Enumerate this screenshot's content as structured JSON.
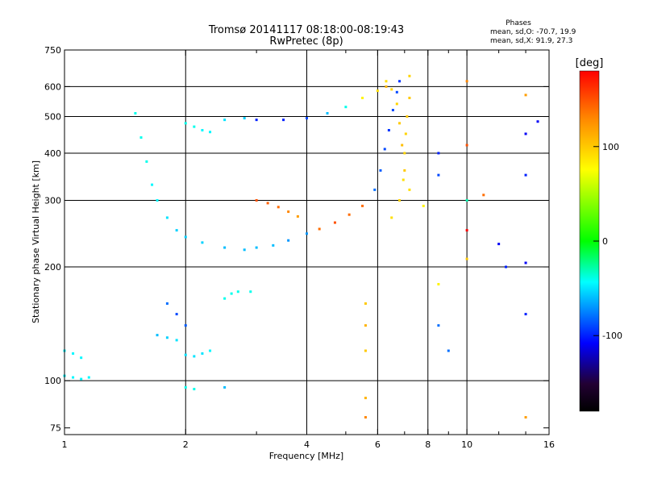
{
  "chart_data": {
    "type": "scatter",
    "title": "Tromsø 20141117 08:18:00-08:19:43",
    "subtitle": "RwPretec (8p)",
    "phase_stats": {
      "heading": "Phases",
      "line_o": "mean, sd,O: -70.7, 19.9",
      "line_x": "mean, sd,X:  91.9, 27.3"
    },
    "xlabel": "Frequency [MHz]",
    "ylabel": "Stationary phase Virtual Height [km]",
    "x_scale": "log",
    "y_scale": "log",
    "xlim": [
      1,
      16
    ],
    "ylim": [
      72,
      750
    ],
    "x_ticks": [
      1,
      2,
      4,
      6,
      8,
      10,
      16
    ],
    "x_tick_labels": [
      "1",
      "2",
      "4",
      "6",
      "8",
      "10",
      "16"
    ],
    "x_minor_ticks": [
      3,
      5,
      7,
      9,
      12,
      14
    ],
    "y_ticks": [
      75,
      100,
      200,
      300,
      400,
      500,
      600,
      750
    ],
    "y_tick_labels": [
      "75",
      "100",
      "200",
      "300",
      "400",
      "500",
      "600",
      "750"
    ],
    "x_gridlines": [
      2,
      4,
      6,
      8,
      10
    ],
    "y_gridlines": [
      100,
      200,
      300,
      400,
      500,
      600
    ],
    "colorbar": {
      "label": "[deg]",
      "range": [
        -180,
        180
      ],
      "ticks": [
        100,
        0,
        -100
      ],
      "tick_labels": [
        "100",
        "0",
        "-100"
      ],
      "colors": [
        "#ff0000",
        "#ff8800",
        "#ffff00",
        "#00ff00",
        "#00ffff",
        "#0000ff",
        "#220033",
        "#000000"
      ]
    },
    "series": [
      {
        "points": [
          [
            1.0,
            120,
            -45
          ],
          [
            1.05,
            118,
            -45
          ],
          [
            1.1,
            115,
            -45
          ],
          [
            1.0,
            103,
            -45
          ],
          [
            1.05,
            102,
            -45
          ],
          [
            1.1,
            101,
            -45
          ],
          [
            1.15,
            102,
            -45
          ]
        ]
      },
      {
        "points": [
          [
            1.5,
            510,
            -40
          ],
          [
            1.55,
            440,
            -40
          ],
          [
            1.6,
            380,
            -40
          ],
          [
            1.65,
            330,
            -45
          ],
          [
            1.7,
            300,
            -45
          ],
          [
            1.8,
            270,
            -50
          ],
          [
            1.9,
            250,
            -55
          ],
          [
            2.0,
            240,
            -55
          ],
          [
            2.2,
            232,
            -55
          ],
          [
            2.5,
            225,
            -60
          ],
          [
            2.8,
            222,
            -60
          ],
          [
            3.0,
            225,
            -60
          ],
          [
            3.3,
            228,
            -60
          ],
          [
            3.6,
            235,
            -70
          ],
          [
            4.0,
            245,
            -70
          ],
          [
            4.3,
            252,
            140
          ],
          [
            4.7,
            262,
            150
          ],
          [
            5.1,
            275,
            140
          ],
          [
            5.5,
            290,
            140
          ],
          [
            5.9,
            320,
            -80
          ],
          [
            6.1,
            360,
            -85
          ],
          [
            6.25,
            410,
            -90
          ],
          [
            6.4,
            460,
            -95
          ],
          [
            6.55,
            520,
            -90
          ],
          [
            6.7,
            580,
            -90
          ],
          [
            6.8,
            620,
            -95
          ]
        ]
      },
      {
        "points": [
          [
            3.0,
            300,
            150
          ],
          [
            3.2,
            295,
            145
          ],
          [
            3.4,
            288,
            140
          ],
          [
            3.6,
            280,
            130
          ],
          [
            3.8,
            272,
            120
          ]
        ]
      },
      {
        "points": [
          [
            6.3,
            620,
            90
          ],
          [
            6.5,
            590,
            95
          ],
          [
            6.7,
            540,
            95
          ],
          [
            6.8,
            480,
            100
          ],
          [
            6.9,
            420,
            105
          ],
          [
            7.0,
            360,
            100
          ],
          [
            6.8,
            300,
            95
          ],
          [
            6.5,
            270,
            90
          ],
          [
            7.2,
            640,
            95
          ],
          [
            7.2,
            560,
            100
          ],
          [
            7.1,
            500,
            100
          ],
          [
            7.05,
            450,
            95
          ],
          [
            7.0,
            400,
            95
          ],
          [
            6.95,
            340,
            90
          ]
        ]
      },
      {
        "points": [
          [
            1.8,
            160,
            -80
          ],
          [
            1.9,
            150,
            -90
          ],
          [
            2.0,
            140,
            -85
          ],
          [
            1.7,
            132,
            -60
          ],
          [
            1.8,
            130,
            -55
          ],
          [
            1.9,
            128,
            -50
          ],
          [
            2.0,
            117,
            -50
          ],
          [
            2.1,
            116,
            -50
          ],
          [
            2.2,
            118,
            -50
          ],
          [
            2.3,
            120,
            -45
          ],
          [
            2.5,
            165,
            -40
          ],
          [
            2.6,
            170,
            -40
          ],
          [
            2.7,
            172,
            -40
          ],
          [
            2.9,
            172,
            -40
          ],
          [
            2.0,
            96,
            -40
          ],
          [
            2.1,
            95,
            -40
          ],
          [
            2.5,
            96,
            -60
          ]
        ]
      },
      {
        "points": [
          [
            2.0,
            480,
            -40
          ],
          [
            2.1,
            470,
            -40
          ],
          [
            2.2,
            460,
            -45
          ],
          [
            2.3,
            455,
            -45
          ],
          [
            2.5,
            490,
            -50
          ],
          [
            2.8,
            495,
            -55
          ],
          [
            3.0,
            490,
            -100
          ],
          [
            3.5,
            490,
            -100
          ],
          [
            4.0,
            495,
            -90
          ],
          [
            4.5,
            510,
            -60
          ],
          [
            5.0,
            530,
            -40
          ],
          [
            5.5,
            560,
            80
          ],
          [
            6.0,
            585,
            90
          ],
          [
            6.3,
            600,
            110
          ]
        ]
      },
      {
        "points": [
          [
            5.6,
            160,
            100
          ],
          [
            5.6,
            140,
            110
          ],
          [
            5.6,
            120,
            100
          ],
          [
            5.6,
            90,
            110
          ],
          [
            5.6,
            80,
            130
          ],
          [
            7.2,
            320,
            90
          ],
          [
            7.8,
            290,
            80
          ],
          [
            8.5,
            400,
            -100
          ],
          [
            8.5,
            350,
            -90
          ],
          [
            8.5,
            180,
            80
          ],
          [
            8.5,
            140,
            -80
          ],
          [
            9.0,
            120,
            -80
          ],
          [
            10.0,
            620,
            130
          ],
          [
            10.0,
            420,
            150
          ],
          [
            10.0,
            300,
            -30
          ],
          [
            10.0,
            250,
            180
          ],
          [
            10.0,
            210,
            100
          ],
          [
            11.0,
            310,
            140
          ],
          [
            12.0,
            230,
            -110
          ],
          [
            12.5,
            200,
            -100
          ],
          [
            14.0,
            570,
            120
          ],
          [
            14.0,
            450,
            -110
          ],
          [
            14.0,
            350,
            -100
          ],
          [
            14.0,
            205,
            -110
          ],
          [
            14.0,
            150,
            -100
          ],
          [
            14.0,
            80,
            120
          ],
          [
            15.0,
            485,
            -110
          ]
        ]
      }
    ]
  }
}
